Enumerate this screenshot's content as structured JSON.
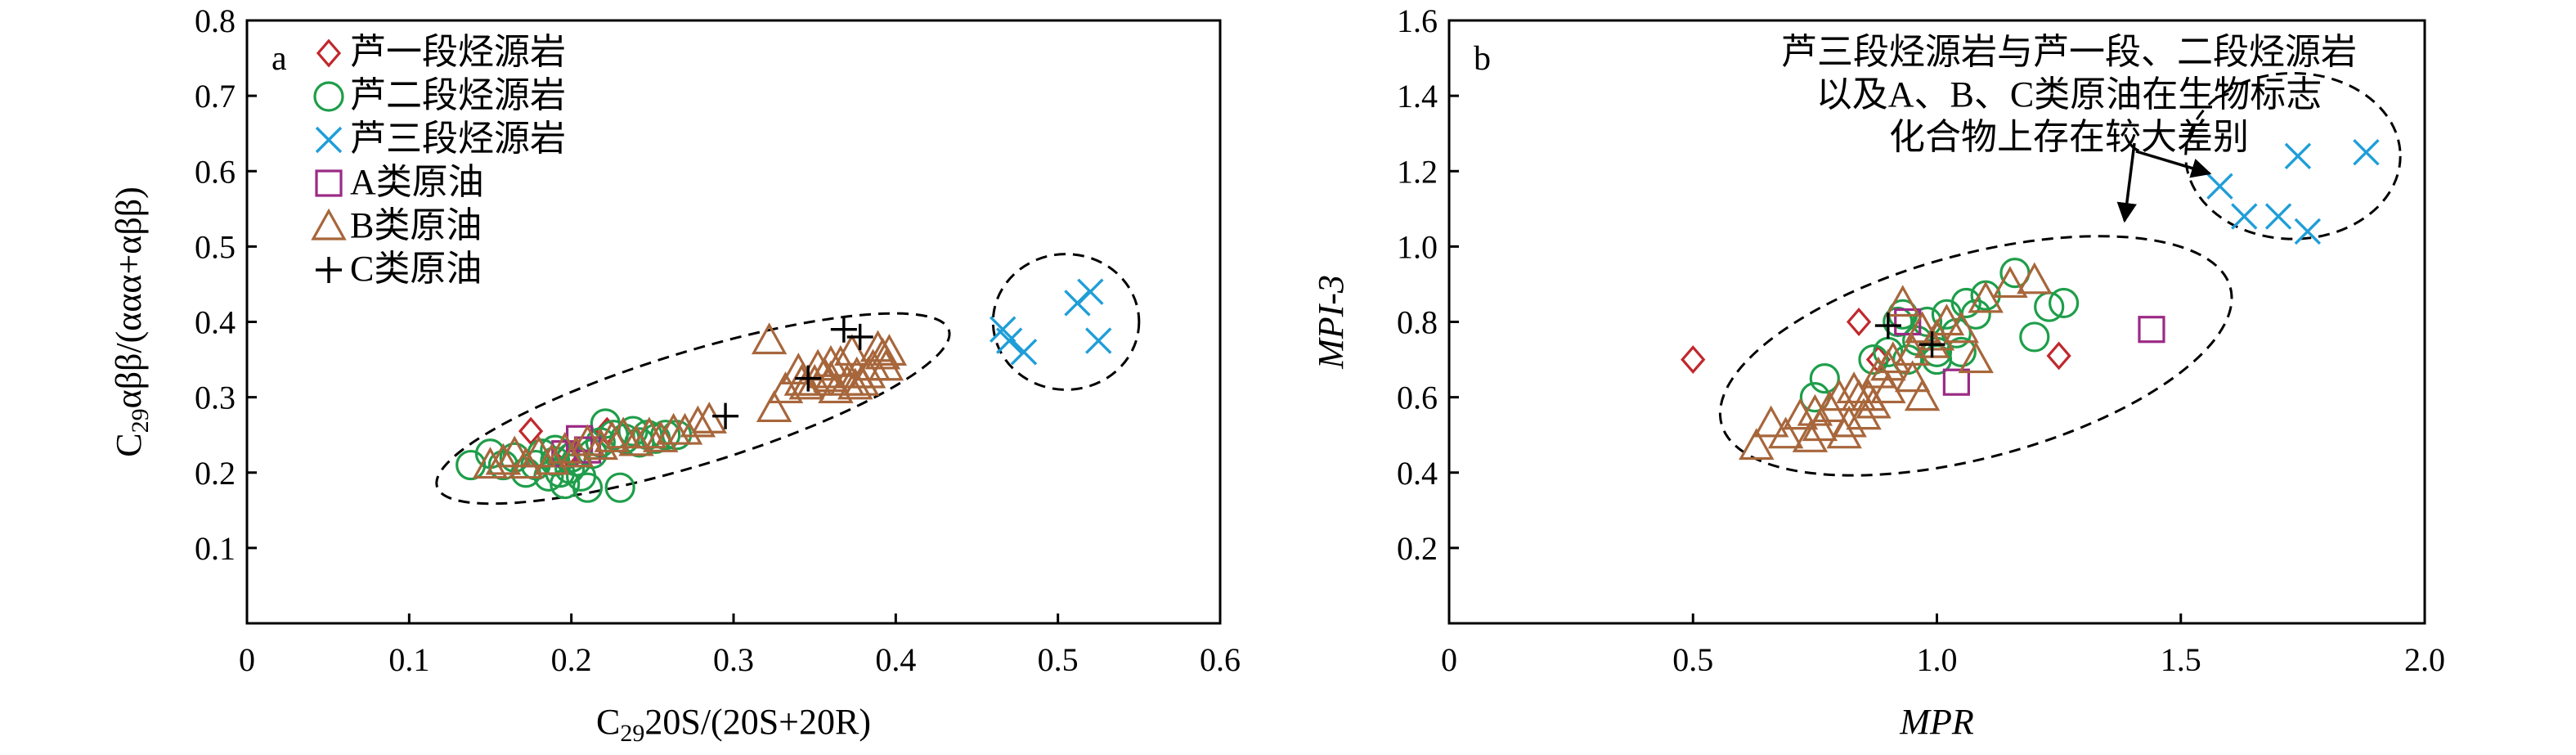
{
  "chart_data": [
    {
      "panel_label": "a",
      "type": "scatter",
      "xlabel": {
        "base": "C",
        "sub": "29",
        "rest": "20S/(20S+20R)"
      },
      "ylabel": {
        "base": "C",
        "sub": "29",
        "rest": "αββ/(ααα+αββ)"
      },
      "xlim": [
        0,
        0.6
      ],
      "ylim": [
        0,
        0.8
      ],
      "xticks": [
        0,
        0.1,
        0.2,
        0.3,
        0.4,
        0.5,
        0.6
      ],
      "xtick_labels": [
        "0",
        "0.1",
        "0.2",
        "0.3",
        "0.4",
        "0.5",
        "0.6"
      ],
      "yticks": [
        0.1,
        0.2,
        0.3,
        0.4,
        0.5,
        0.6,
        0.7,
        0.8
      ],
      "ytick_labels": [
        "0.1",
        "0.2",
        "0.3",
        "0.4",
        "0.5",
        "0.6",
        "0.7",
        "0.8"
      ],
      "grid": false,
      "legend_position": "top-left",
      "ellipses": [
        {
          "cx": 0.275,
          "cy": 0.285,
          "rx": 0.165,
          "ry": 0.075,
          "rotation": -17
        },
        {
          "cx": 0.505,
          "cy": 0.4,
          "rx": 0.045,
          "ry": 0.09,
          "rotation": 0
        }
      ],
      "series": [
        {
          "name": "芦一段烃源岩",
          "marker": "diamond",
          "color": "#c0282d",
          "points": [
            [
              0.175,
              0.255
            ],
            [
              0.222,
              0.255
            ],
            [
              0.198,
              0.225
            ]
          ]
        },
        {
          "name": "芦二段烃源岩",
          "marker": "circle",
          "color": "#1e9e4a",
          "points": [
            [
              0.138,
              0.21
            ],
            [
              0.15,
              0.225
            ],
            [
              0.158,
              0.21
            ],
            [
              0.165,
              0.22
            ],
            [
              0.172,
              0.2
            ],
            [
              0.178,
              0.21
            ],
            [
              0.182,
              0.225
            ],
            [
              0.186,
              0.195
            ],
            [
              0.19,
              0.215
            ],
            [
              0.193,
              0.2
            ],
            [
              0.196,
              0.185
            ],
            [
              0.199,
              0.205
            ],
            [
              0.203,
              0.215
            ],
            [
              0.206,
              0.195
            ],
            [
              0.21,
              0.18
            ],
            [
              0.213,
              0.225
            ],
            [
              0.218,
              0.24
            ],
            [
              0.221,
              0.265
            ],
            [
              0.226,
              0.25
            ],
            [
              0.23,
              0.18
            ],
            [
              0.233,
              0.245
            ],
            [
              0.238,
              0.255
            ],
            [
              0.242,
              0.24
            ],
            [
              0.247,
              0.25
            ],
            [
              0.252,
              0.245
            ],
            [
              0.258,
              0.25
            ],
            [
              0.265,
              0.25
            ],
            [
              0.19,
              0.23
            ],
            [
              0.2,
              0.22
            ]
          ]
        },
        {
          "name": "芦三段烃源岩",
          "marker": "x",
          "color": "#1f9ed8",
          "points": [
            [
              0.466,
              0.39
            ],
            [
              0.47,
              0.375
            ],
            [
              0.479,
              0.36
            ],
            [
              0.512,
              0.425
            ],
            [
              0.52,
              0.44
            ],
            [
              0.525,
              0.375
            ]
          ]
        },
        {
          "name": "A类原油",
          "marker": "square",
          "color": "#9b2a85",
          "points": [
            [
              0.196,
              0.225
            ],
            [
              0.205,
              0.245
            ],
            [
              0.21,
              0.23
            ]
          ]
        },
        {
          "name": "B类原油",
          "marker": "triangle",
          "color": "#a7663b",
          "points": [
            [
              0.15,
              0.21
            ],
            [
              0.158,
              0.215
            ],
            [
              0.165,
              0.225
            ],
            [
              0.172,
              0.21
            ],
            [
              0.18,
              0.225
            ],
            [
              0.188,
              0.215
            ],
            [
              0.196,
              0.23
            ],
            [
              0.203,
              0.225
            ],
            [
              0.21,
              0.24
            ],
            [
              0.218,
              0.235
            ],
            [
              0.225,
              0.245
            ],
            [
              0.232,
              0.25
            ],
            [
              0.24,
              0.24
            ],
            [
              0.248,
              0.25
            ],
            [
              0.255,
              0.245
            ],
            [
              0.263,
              0.255
            ],
            [
              0.27,
              0.255
            ],
            [
              0.278,
              0.265
            ],
            [
              0.285,
              0.27
            ],
            [
              0.322,
              0.375
            ],
            [
              0.325,
              0.285
            ],
            [
              0.332,
              0.31
            ],
            [
              0.34,
              0.335
            ],
            [
              0.345,
              0.315
            ],
            [
              0.35,
              0.32
            ],
            [
              0.352,
              0.34
            ],
            [
              0.356,
              0.33
            ],
            [
              0.36,
              0.325
            ],
            [
              0.363,
              0.31
            ],
            [
              0.366,
              0.345
            ],
            [
              0.37,
              0.32
            ],
            [
              0.373,
              0.36
            ],
            [
              0.376,
              0.33
            ],
            [
              0.379,
              0.32
            ],
            [
              0.383,
              0.33
            ],
            [
              0.386,
              0.34
            ],
            [
              0.389,
              0.365
            ],
            [
              0.392,
              0.355
            ],
            [
              0.394,
              0.34
            ],
            [
              0.396,
              0.36
            ],
            [
              0.375,
              0.315
            ],
            [
              0.36,
              0.345
            ],
            [
              0.342,
              0.32
            ]
          ]
        },
        {
          "name": "C类原油",
          "marker": "plus",
          "color": "#000000",
          "points": [
            [
              0.295,
              0.275
            ],
            [
              0.346,
              0.325
            ],
            [
              0.368,
              0.39
            ],
            [
              0.378,
              0.38
            ]
          ]
        }
      ]
    },
    {
      "panel_label": "b",
      "type": "scatter",
      "xlabel": "MPR",
      "ylabel": "MPI-3",
      "xlim": [
        0,
        2.0
      ],
      "ylim": [
        0,
        1.6
      ],
      "xticks": [
        0,
        0.5,
        1.0,
        1.5,
        2.0
      ],
      "xtick_labels": [
        "0",
        "0.5",
        "1.0",
        "1.5",
        "2.0"
      ],
      "yticks": [
        0.2,
        0.4,
        0.6,
        0.8,
        1.0,
        1.2,
        1.4,
        1.6
      ],
      "ytick_labels": [
        "0.2",
        "0.4",
        "0.6",
        "0.8",
        "1.0",
        "1.2",
        "1.4",
        "1.6"
      ],
      "grid": false,
      "annotation": [
        "芦三段烃源岩与芦一段、二段烃源岩",
        "以及A、B、C类原油在生物标志",
        "化合物上存在较大差别"
      ],
      "ellipses": [
        {
          "cx": 1.08,
          "cy": 0.71,
          "rx": 0.54,
          "ry": 0.27,
          "rotation": -15
        },
        {
          "cx": 1.73,
          "cy": 1.24,
          "rx": 0.22,
          "ry": 0.22,
          "rotation": 0
        }
      ],
      "series": [
        {
          "name": "芦一段烃源岩",
          "marker": "diamond",
          "color": "#c0282d",
          "points": [
            [
              0.5,
              0.7
            ],
            [
              0.84,
              0.8
            ],
            [
              0.88,
              0.7
            ],
            [
              1.25,
              0.71
            ]
          ]
        },
        {
          "name": "芦二段烃源岩",
          "marker": "circle",
          "color": "#1e9e4a",
          "points": [
            [
              0.75,
              0.6
            ],
            [
              0.77,
              0.65
            ],
            [
              0.87,
              0.7
            ],
            [
              0.9,
              0.72
            ],
            [
              0.92,
              0.8
            ],
            [
              0.94,
              0.7
            ],
            [
              0.96,
              0.75
            ],
            [
              0.98,
              0.8
            ],
            [
              1.0,
              0.72
            ],
            [
              1.02,
              0.82
            ],
            [
              1.04,
              0.77
            ],
            [
              1.06,
              0.85
            ],
            [
              1.08,
              0.82
            ],
            [
              1.1,
              0.87
            ],
            [
              1.16,
              0.93
            ],
            [
              1.2,
              0.76
            ],
            [
              1.23,
              0.84
            ],
            [
              1.26,
              0.85
            ],
            [
              0.93,
              0.82
            ],
            [
              1.0,
              0.7
            ],
            [
              1.05,
              0.72
            ]
          ]
        },
        {
          "name": "芦三段烃源岩",
          "marker": "x",
          "color": "#1f9ed8",
          "points": [
            [
              1.58,
              1.16
            ],
            [
              1.63,
              1.08
            ],
            [
              1.7,
              1.08
            ],
            [
              1.74,
              1.24
            ],
            [
              1.76,
              1.04
            ],
            [
              1.88,
              1.25
            ]
          ]
        },
        {
          "name": "A类原油",
          "marker": "square",
          "color": "#9b2a85",
          "points": [
            [
              0.94,
              0.8
            ],
            [
              1.04,
              0.64
            ],
            [
              1.44,
              0.78
            ]
          ]
        },
        {
          "name": "B类原油",
          "marker": "triangle",
          "color": "#a7663b",
          "points": [
            [
              0.63,
              0.47
            ],
            [
              0.66,
              0.53
            ],
            [
              0.69,
              0.5
            ],
            [
              0.72,
              0.55
            ],
            [
              0.74,
              0.49
            ],
            [
              0.76,
              0.52
            ],
            [
              0.78,
              0.57
            ],
            [
              0.8,
              0.6
            ],
            [
              0.81,
              0.5
            ],
            [
              0.83,
              0.62
            ],
            [
              0.85,
              0.55
            ],
            [
              0.86,
              0.6
            ],
            [
              0.88,
              0.66
            ],
            [
              0.9,
              0.62
            ],
            [
              0.91,
              0.7
            ],
            [
              0.93,
              0.85
            ],
            [
              0.95,
              0.72
            ],
            [
              0.97,
              0.78
            ],
            [
              0.99,
              0.74
            ],
            [
              1.02,
              0.8
            ],
            [
              1.05,
              0.78
            ],
            [
              1.08,
              0.7
            ],
            [
              1.1,
              0.86
            ],
            [
              1.15,
              0.9
            ],
            [
              1.2,
              0.91
            ],
            [
              0.75,
              0.56
            ],
            [
              0.82,
              0.53
            ],
            [
              0.87,
              0.58
            ],
            [
              0.95,
              0.65
            ],
            [
              1.0,
              0.76
            ],
            [
              0.9,
              0.68
            ],
            [
              0.84,
              0.6
            ],
            [
              0.97,
              0.6
            ]
          ]
        },
        {
          "name": "C类原油",
          "marker": "plus",
          "color": "#000000",
          "points": [
            [
              0.9,
              0.79
            ],
            [
              0.99,
              0.74
            ]
          ]
        }
      ]
    }
  ]
}
